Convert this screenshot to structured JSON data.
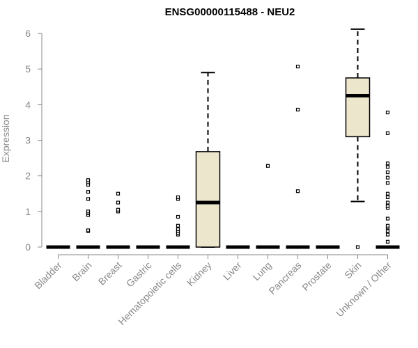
{
  "chart_data": {
    "type": "boxplot",
    "title": "ENSG00000115488 - NEU2",
    "xlabel": "",
    "ylabel": "Expression",
    "ylim": [
      0,
      6.2
    ],
    "yticks": [
      0,
      1,
      2,
      3,
      4,
      5,
      6
    ],
    "grid": false,
    "legend": "none",
    "box_fill": "#ece6cd",
    "box_stroke": "#000000",
    "label_color": "#888888",
    "categories": [
      "Bladder",
      "Brain",
      "Breast",
      "Gastric",
      "Hematopoietic cells",
      "Kidney",
      "Liver",
      "Lung",
      "Pancreas",
      "Prostate",
      "Skin",
      "Unknown / Other"
    ],
    "boxes": [
      {
        "category": "Bladder",
        "q1": 0,
        "median": 0,
        "q3": 0,
        "whisker_low": 0,
        "whisker_high": 0,
        "outliers": []
      },
      {
        "category": "Brain",
        "q1": 0,
        "median": 0,
        "q3": 0,
        "whisker_low": 0,
        "whisker_high": 0,
        "outliers": [
          0.45,
          0.47,
          0.9,
          0.95,
          1.0,
          1.35,
          1.55,
          1.75,
          1.82,
          1.88
        ]
      },
      {
        "category": "Breast",
        "q1": 0,
        "median": 0,
        "q3": 0,
        "whisker_low": 0,
        "whisker_high": 0,
        "outliers": [
          1.0,
          1.05,
          1.25,
          1.5
        ]
      },
      {
        "category": "Gastric",
        "q1": 0,
        "median": 0,
        "q3": 0,
        "whisker_low": 0,
        "whisker_high": 0,
        "outliers": []
      },
      {
        "category": "Hematopoietic cells",
        "q1": 0,
        "median": 0,
        "q3": 0,
        "whisker_low": 0,
        "whisker_high": 0,
        "outliers": [
          0.35,
          0.4,
          0.45,
          0.5,
          0.6,
          0.85,
          1.35,
          1.4
        ]
      },
      {
        "category": "Kidney",
        "q1": 0,
        "median": 1.25,
        "q3": 2.68,
        "whisker_low": 0,
        "whisker_high": 4.9,
        "outliers": []
      },
      {
        "category": "Liver",
        "q1": 0,
        "median": 0,
        "q3": 0,
        "whisker_low": 0,
        "whisker_high": 0,
        "outliers": []
      },
      {
        "category": "Lung",
        "q1": 0,
        "median": 0,
        "q3": 0,
        "whisker_low": 0,
        "whisker_high": 0,
        "outliers": [
          2.28
        ]
      },
      {
        "category": "Pancreas",
        "q1": 0,
        "median": 0,
        "q3": 0,
        "whisker_low": 0,
        "whisker_high": 0,
        "outliers": [
          1.57,
          3.86,
          5.07
        ]
      },
      {
        "category": "Prostate",
        "q1": 0,
        "median": 0,
        "q3": 0,
        "whisker_low": 0,
        "whisker_high": 0,
        "outliers": []
      },
      {
        "category": "Skin",
        "q1": 3.1,
        "median": 4.25,
        "q3": 4.75,
        "whisker_low": 1.28,
        "whisker_high": 6.12,
        "outliers": [
          0
        ]
      },
      {
        "category": "Unknown / Other",
        "q1": 0,
        "median": 0,
        "q3": 0,
        "whisker_low": 0,
        "whisker_high": 0,
        "outliers": [
          0.15,
          0.35,
          0.45,
          0.55,
          0.6,
          0.8,
          1.1,
          1.15,
          1.25,
          1.4,
          1.5,
          1.8,
          1.95,
          2.1,
          2.25,
          2.35,
          3.2,
          3.78
        ]
      }
    ]
  }
}
